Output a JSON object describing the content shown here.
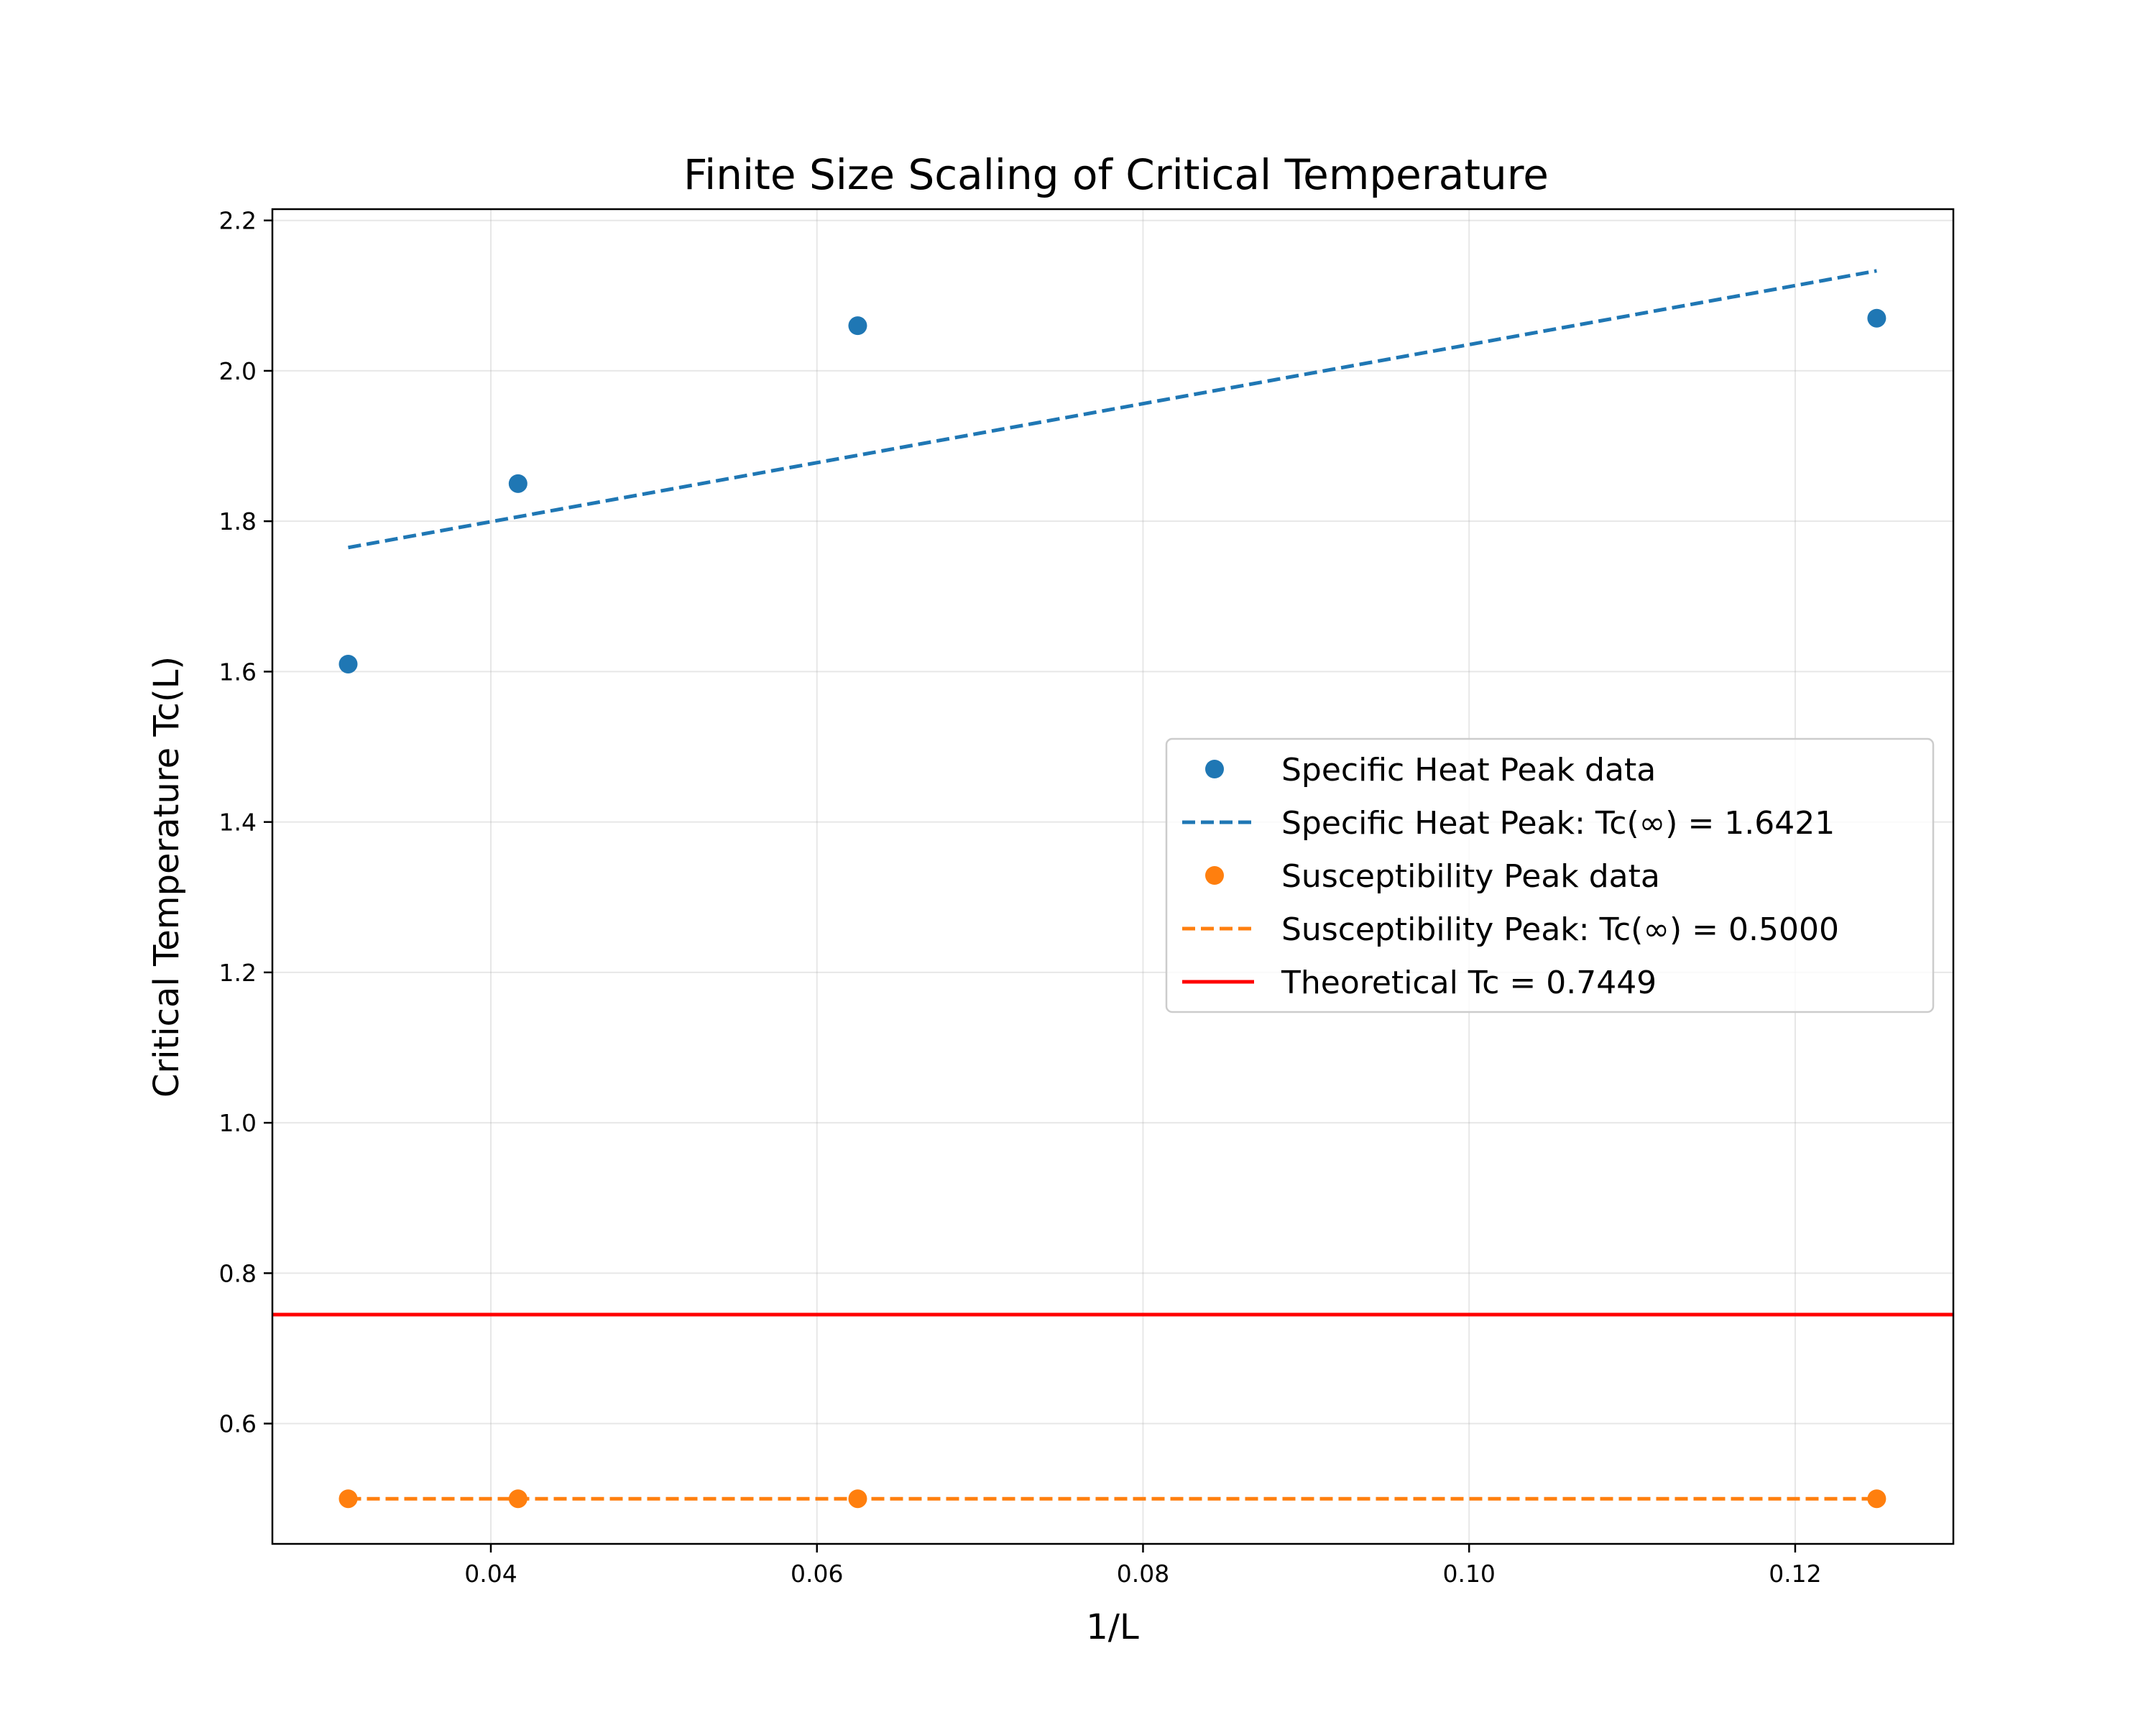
{
  "chart_data": {
    "type": "scatter",
    "title": "Finite Size Scaling of Critical Temperature",
    "xlabel": "1/L",
    "ylabel": "Critical Temperature Tc(L)",
    "xlim": [
      0.0266,
      0.1297
    ],
    "ylim": [
      0.44,
      2.215
    ],
    "xticks": [
      0.04,
      0.06,
      0.08,
      0.1,
      0.12
    ],
    "xtick_labels": [
      "0.04",
      "0.06",
      "0.08",
      "0.10",
      "0.12"
    ],
    "yticks": [
      0.6,
      0.8,
      1.0,
      1.2,
      1.4,
      1.6,
      1.8,
      2.0,
      2.2
    ],
    "ytick_labels": [
      "0.6",
      "0.8",
      "1.0",
      "1.2",
      "1.4",
      "1.6",
      "1.8",
      "2.0",
      "2.2"
    ],
    "grid": true,
    "legend_position": "center-right",
    "colors": {
      "specific_heat": "#1f77b4",
      "susceptibility": "#ff7f0e",
      "theoretical": "#ff0000"
    },
    "series": [
      {
        "key": "sh_data",
        "name": "Specific Heat Peak data",
        "kind": "scatter",
        "color": "#1f77b4",
        "x": [
          0.03125,
          0.041667,
          0.0625,
          0.125
        ],
        "y": [
          1.61,
          1.85,
          2.06,
          2.07
        ]
      },
      {
        "key": "sh_fit",
        "name": "Specific Heat Peak: Tc(∞) = 1.6421",
        "kind": "dashed-line",
        "color": "#1f77b4",
        "x": [
          0.03125,
          0.125
        ],
        "y": [
          1.765,
          2.133
        ]
      },
      {
        "key": "sus_data",
        "name": "Susceptibility Peak data",
        "kind": "scatter",
        "color": "#ff7f0e",
        "x": [
          0.03125,
          0.041667,
          0.0625,
          0.125
        ],
        "y": [
          0.5,
          0.5,
          0.5,
          0.5
        ]
      },
      {
        "key": "sus_fit",
        "name": "Susceptibility Peak: Tc(∞) = 0.5000",
        "kind": "dashed-line",
        "color": "#ff7f0e",
        "x": [
          0.03125,
          0.125
        ],
        "y": [
          0.5,
          0.5
        ]
      },
      {
        "key": "theory",
        "name": "Theoretical Tc = 0.7449",
        "kind": "hline",
        "color": "#ff0000",
        "y": 0.7449
      }
    ]
  }
}
